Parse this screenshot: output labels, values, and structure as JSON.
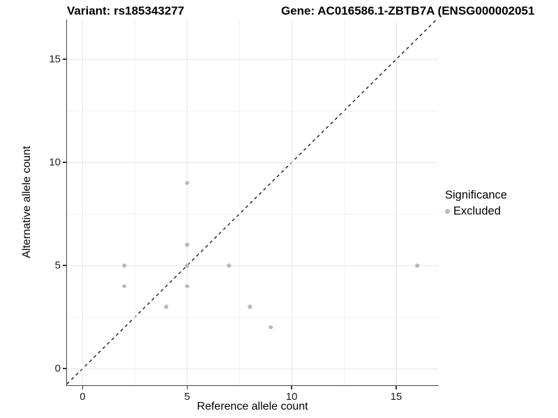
{
  "title": {
    "variant": "Variant: rs185343277",
    "gene": "Gene: AC016586.1-ZBTB7A (ENSG000002051"
  },
  "legend": {
    "title": "Significance",
    "items": [
      {
        "label": "Excluded",
        "color": "#b9b9b9"
      }
    ]
  },
  "colors": {
    "point": "#b9b9b9",
    "grid_major": "#e7e7e7",
    "grid_minor": "#f3f3f3",
    "axis_line": "#434343",
    "identity_line": "#1a1a1a",
    "background": "#ffffff"
  },
  "chart_data": {
    "type": "scatter",
    "xlabel": "Reference allele count",
    "ylabel": "Alternative allele count",
    "xlim": [
      -0.75,
      17.0
    ],
    "ylim": [
      -0.81,
      16.93
    ],
    "x_ticks": [
      0,
      5,
      10,
      15
    ],
    "y_ticks": [
      0,
      5,
      10,
      15
    ],
    "x_minor_gridlines": [
      2.5,
      7.5,
      12.5
    ],
    "y_minor_gridlines": [
      2.5,
      7.5,
      12.5
    ],
    "grid": true,
    "legend_position": "right",
    "identity_line": {
      "equation": "y = x",
      "style": "dashed",
      "color": "#1a1a1a"
    },
    "series": [
      {
        "name": "Excluded",
        "color": "#b9b9b9",
        "points": [
          [
            2,
            4
          ],
          [
            2,
            5
          ],
          [
            4,
            3
          ],
          [
            5,
            4
          ],
          [
            5,
            5
          ],
          [
            5,
            6
          ],
          [
            5,
            9
          ],
          [
            7,
            5
          ],
          [
            8,
            3
          ],
          [
            9,
            2
          ],
          [
            16,
            5
          ]
        ]
      }
    ]
  }
}
